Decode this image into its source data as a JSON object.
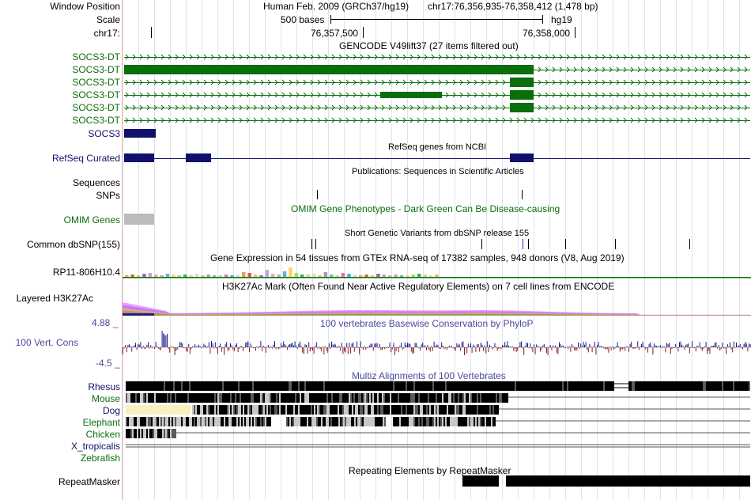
{
  "header": {
    "window_position_label": "Window Position",
    "assembly_text": "Human Feb. 2009 (GRCh37/hg19)",
    "position_text": "chr17:76,356,935-76,358,412 (1,478 bp)",
    "scale_label": "Scale",
    "scale_bar_text": "500 bases",
    "scale_db_text": "hg19",
    "chrom_label": "chr17:",
    "ticks": [
      "76,357,500",
      "76,358,000"
    ]
  },
  "tracks": {
    "gencode_title": "GENCODE V49lift37 (27 items filtered out)",
    "gencode_items": [
      "SOCS3-DT",
      "SOCS3-DT",
      "SOCS3-DT",
      "SOCS3-DT",
      "SOCS3-DT",
      "SOCS3-DT"
    ],
    "socs3_label": "SOCS3",
    "refseq_title": "RefSeq genes from NCBI",
    "refseq_label": "RefSeq Curated",
    "pubs_title": "Publications: Sequences in Scientific Articles",
    "sequences_label": "Sequences",
    "snps_label": "SNPs",
    "omim_title": "OMIM Gene Phenotypes - Dark Green Can Be Disease-causing",
    "omim_label": "OMIM Genes",
    "dbsnp_title": "Short Genetic Variants from dbSNP release 155",
    "dbsnp_label": "Common dbSNP(155)",
    "gtex_title": "Gene Expression in 54 tissues from GTEx RNA-seq of 17382 samples, 948 donors (V8, Aug 2019)",
    "gtex_label": "RP11-806H10.4",
    "h3k_title": "H3K27Ac Mark (Often Found Near Active Regulatory Elements) on 7 cell lines from ENCODE",
    "h3k_label": "Layered H3K27Ac",
    "cons_title": "100 vertebrates Basewise Conservation by PhyloP",
    "cons_label": "100 Vert. Cons",
    "cons_max": "4.88 _",
    "cons_min": "-4.5 _",
    "multiz_title": "Multiz Alignments of 100 Vertebrates",
    "species": [
      "Rhesus",
      "Mouse",
      "Dog",
      "Elephant",
      "Chicken",
      "X_tropicalis",
      "Zebrafish"
    ],
    "rmsk_title": "Repeating Elements by RepeatMasker",
    "rmsk_label": "RepeatMasker"
  },
  "colors": {
    "gencode": "#0a6e0a",
    "refseq": "#10106e",
    "omim_block": "#bbbbbb",
    "label_blue": "#2a2aa0",
    "cons_pos": "#1a1a88",
    "cons_neg": "#8a1a1a",
    "dog_block": "#f5f2bf"
  }
}
